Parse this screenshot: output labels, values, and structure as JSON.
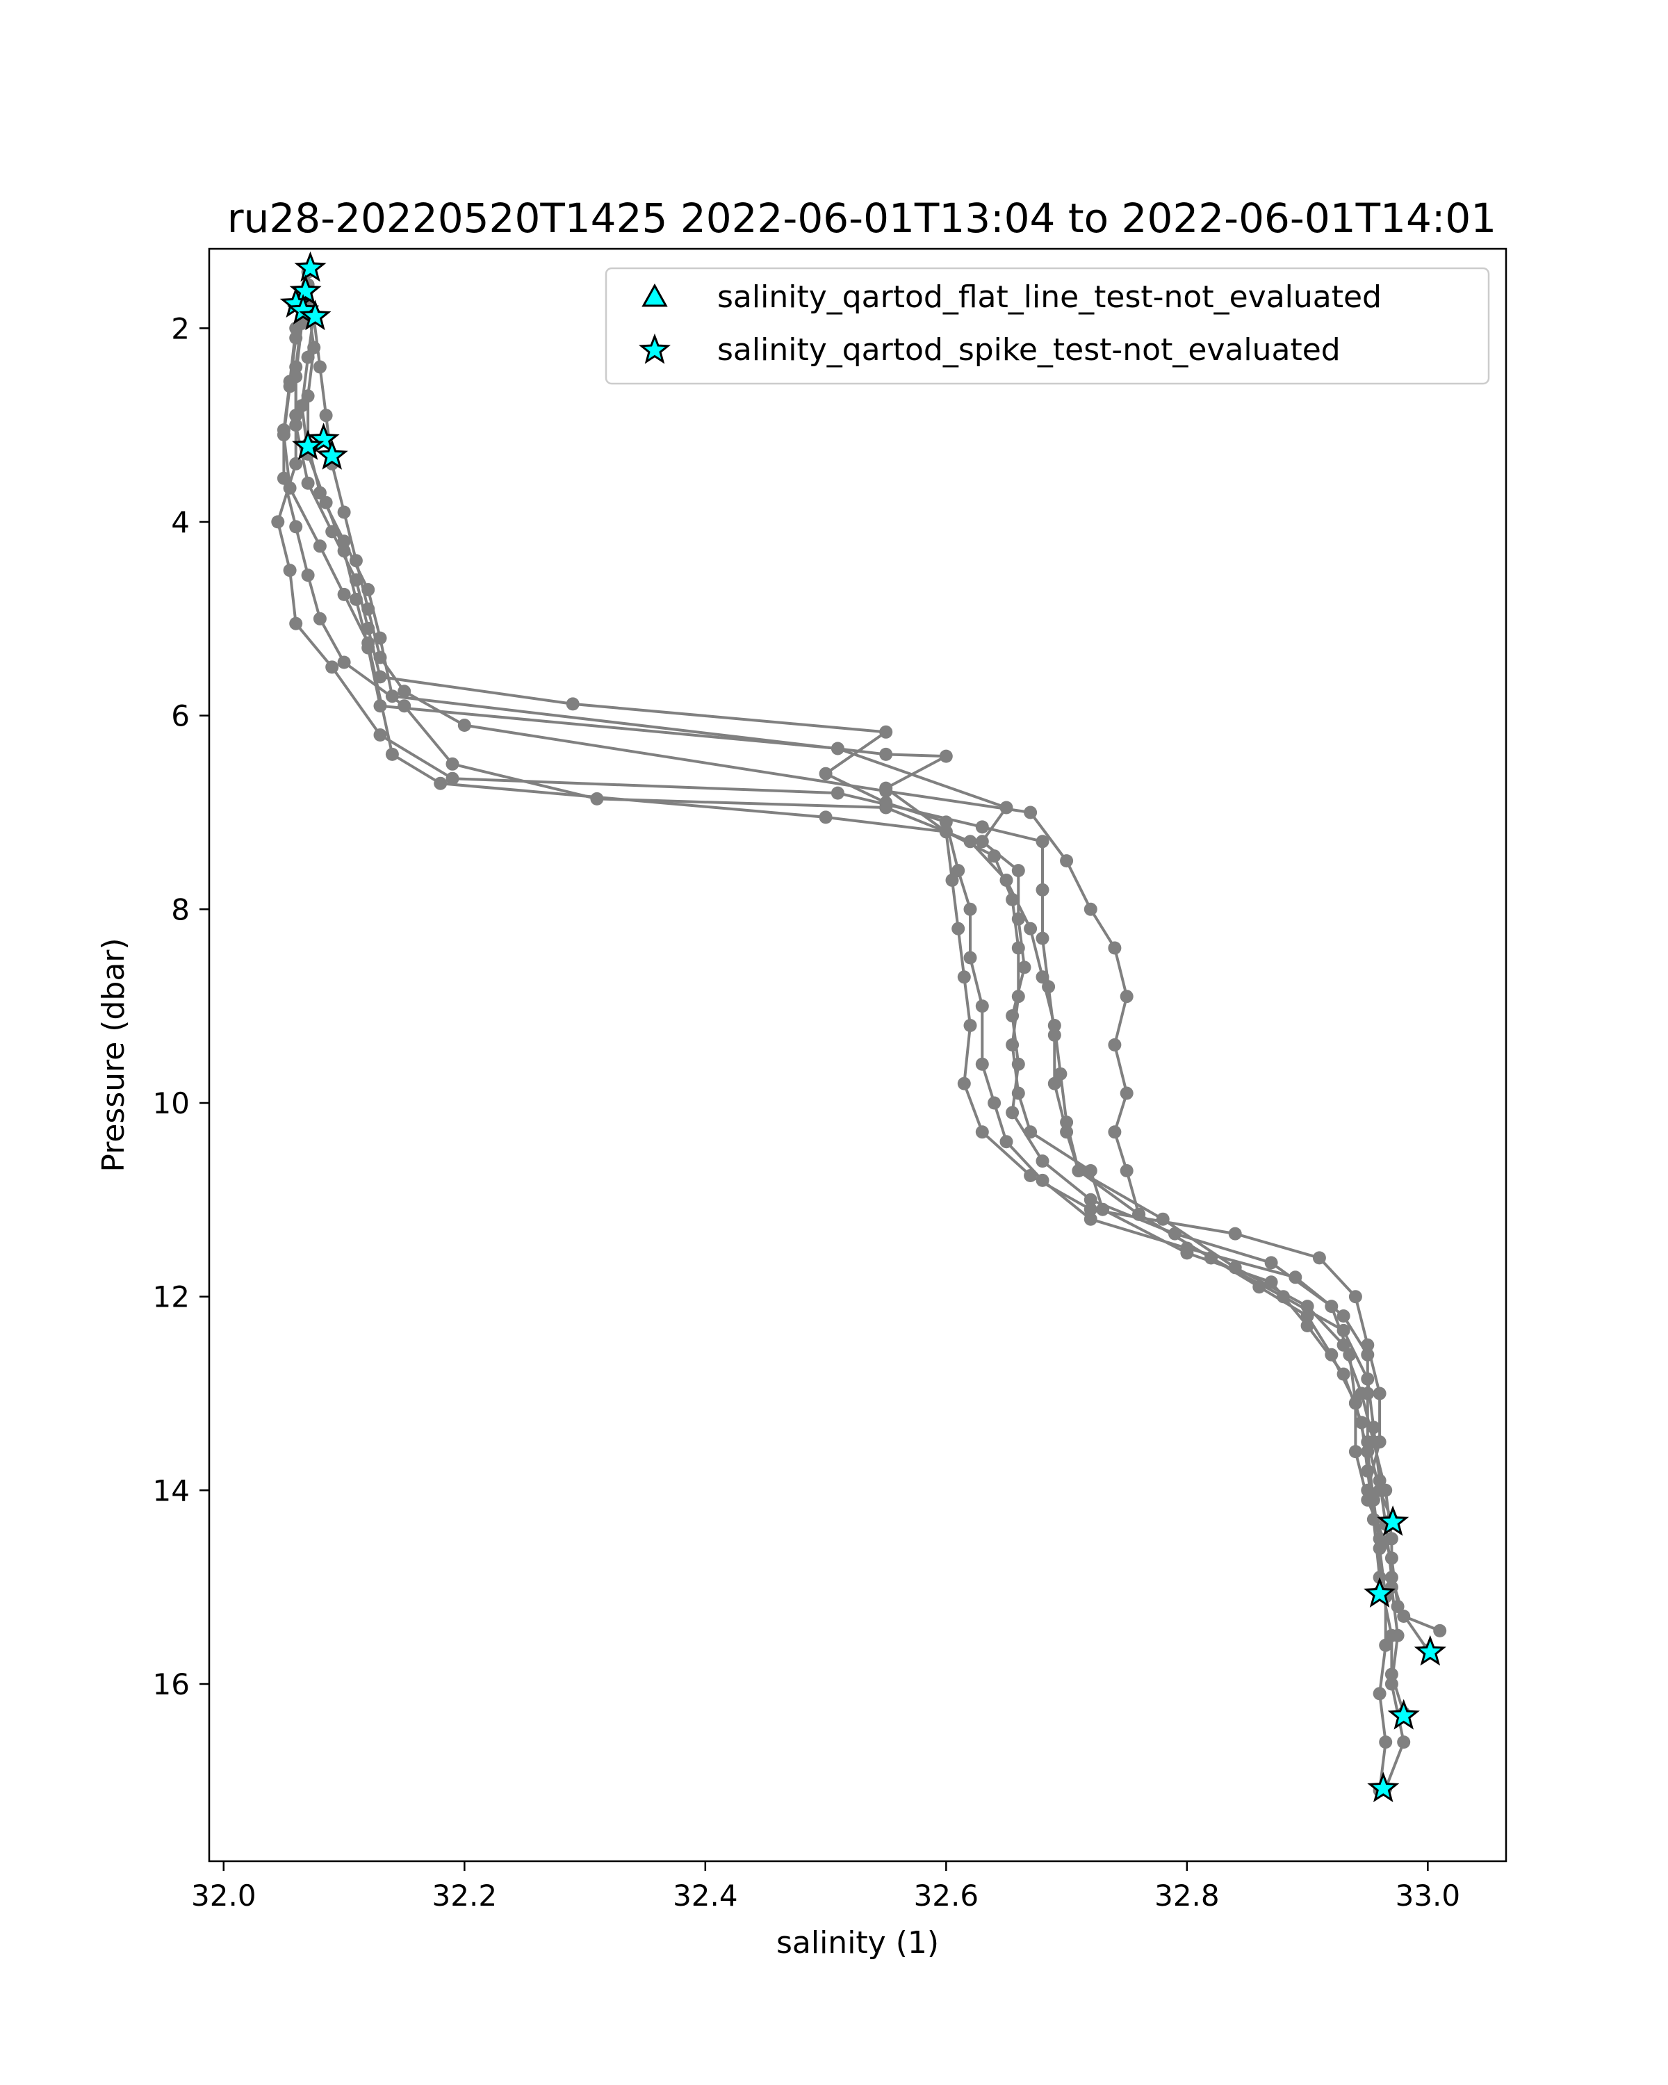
{
  "chart_data": {
    "type": "line",
    "title": "ru28-20220520T1425 2022-06-01T13:04 to 2022-06-01T14:01",
    "xlabel": "salinity (1)",
    "ylabel": "Pressure (dbar)",
    "xlim": [
      31.988,
      33.065
    ],
    "ylim": [
      17.83,
      1.18
    ],
    "y_inverted": true,
    "grid": false,
    "xticks": [
      32.0,
      32.2,
      32.4,
      32.6,
      32.8,
      33.0
    ],
    "xtick_labels": [
      "32.0",
      "32.2",
      "32.4",
      "32.6",
      "32.8",
      "33.0"
    ],
    "yticks": [
      2,
      4,
      6,
      8,
      10,
      12,
      14,
      16
    ],
    "ytick_labels": [
      "2",
      "4",
      "6",
      "8",
      "10",
      "12",
      "14",
      "16"
    ],
    "colors": {
      "profile": "#808080",
      "marker_fill": "#00ffff",
      "marker_edge": "#000000"
    },
    "legend": {
      "placement": "upper right",
      "entries": [
        {
          "label": "salinity_qartod_flat_line_test-not_evaluated",
          "marker": "triangle"
        },
        {
          "label": "salinity_qartod_spike_test-not_evaluated",
          "marker": "star"
        }
      ]
    },
    "series": [
      {
        "points": [
          [
            32.07,
            1.55
          ],
          [
            32.065,
            1.95
          ],
          [
            32.06,
            2.5
          ],
          [
            32.06,
            3.0
          ],
          [
            32.07,
            3.6
          ],
          [
            32.09,
            4.1
          ],
          [
            32.11,
            4.6
          ],
          [
            32.12,
            5.1
          ],
          [
            32.13,
            5.6
          ],
          [
            32.29,
            5.88
          ],
          [
            32.55,
            6.17
          ],
          [
            32.5,
            6.6
          ],
          [
            32.55,
            6.9
          ],
          [
            32.6,
            7.1
          ],
          [
            32.61,
            7.6
          ],
          [
            32.62,
            8.0
          ],
          [
            32.62,
            8.5
          ],
          [
            32.63,
            9.0
          ],
          [
            32.63,
            9.6
          ],
          [
            32.64,
            10.0
          ],
          [
            32.65,
            10.4
          ],
          [
            32.68,
            10.8
          ],
          [
            32.72,
            11.2
          ],
          [
            32.8,
            11.5
          ],
          [
            32.89,
            11.8
          ],
          [
            32.93,
            12.2
          ],
          [
            32.95,
            12.6
          ],
          [
            32.95,
            13.0
          ],
          [
            32.95,
            13.5
          ],
          [
            32.96,
            14.0
          ],
          [
            32.97,
            14.3
          ]
        ]
      },
      {
        "points": [
          [
            32.07,
            1.75
          ],
          [
            32.075,
            2.2
          ],
          [
            32.07,
            2.7
          ],
          [
            32.07,
            3.2
          ],
          [
            32.08,
            3.7
          ],
          [
            32.1,
            4.2
          ],
          [
            32.12,
            4.7
          ],
          [
            32.13,
            5.2
          ],
          [
            32.14,
            5.8
          ],
          [
            32.55,
            6.4
          ],
          [
            32.6,
            6.42
          ],
          [
            32.55,
            6.75
          ],
          [
            32.6,
            7.2
          ],
          [
            32.605,
            7.7
          ],
          [
            32.61,
            8.2
          ],
          [
            32.615,
            8.7
          ],
          [
            32.62,
            9.2
          ],
          [
            32.615,
            9.8
          ],
          [
            32.63,
            10.3
          ],
          [
            32.67,
            10.75
          ],
          [
            32.72,
            11.1
          ],
          [
            32.84,
            11.35
          ],
          [
            32.91,
            11.6
          ],
          [
            32.94,
            12.0
          ],
          [
            32.95,
            12.5
          ],
          [
            32.96,
            13.0
          ],
          [
            32.96,
            13.5
          ],
          [
            32.95,
            14.0
          ],
          [
            32.96,
            14.5
          ],
          [
            32.96,
            15.05
          ]
        ]
      },
      {
        "points": [
          [
            32.075,
            1.85
          ],
          [
            32.07,
            2.3
          ],
          [
            32.065,
            2.8
          ],
          [
            32.07,
            3.3
          ],
          [
            32.085,
            3.8
          ],
          [
            32.1,
            4.3
          ],
          [
            32.11,
            4.8
          ],
          [
            32.12,
            5.3
          ],
          [
            32.13,
            5.9
          ],
          [
            32.51,
            6.34
          ],
          [
            32.65,
            6.95
          ],
          [
            32.63,
            7.3
          ],
          [
            32.66,
            7.6
          ],
          [
            32.66,
            8.1
          ],
          [
            32.665,
            8.6
          ],
          [
            32.655,
            9.1
          ],
          [
            32.66,
            9.6
          ],
          [
            32.655,
            10.1
          ],
          [
            32.68,
            10.6
          ],
          [
            32.72,
            11.0
          ],
          [
            32.79,
            11.35
          ],
          [
            32.87,
            11.65
          ],
          [
            32.92,
            12.1
          ],
          [
            32.935,
            12.6
          ],
          [
            32.94,
            13.1
          ],
          [
            32.94,
            13.6
          ],
          [
            32.95,
            14.1
          ],
          [
            32.97,
            14.7
          ],
          [
            32.975,
            15.2
          ],
          [
            33.0,
            15.65
          ]
        ]
      },
      {
        "points": [
          [
            32.065,
            1.7
          ],
          [
            32.06,
            2.1
          ],
          [
            32.055,
            2.6
          ],
          [
            32.05,
            3.1
          ],
          [
            32.055,
            3.65
          ],
          [
            32.08,
            4.25
          ],
          [
            32.1,
            4.75
          ],
          [
            32.12,
            5.25
          ],
          [
            32.14,
            6.4
          ],
          [
            32.18,
            6.7
          ],
          [
            32.5,
            7.05
          ],
          [
            32.6,
            7.2
          ],
          [
            32.64,
            7.45
          ],
          [
            32.655,
            7.9
          ],
          [
            32.66,
            8.4
          ],
          [
            32.66,
            8.9
          ],
          [
            32.655,
            9.4
          ],
          [
            32.66,
            9.9
          ],
          [
            32.67,
            10.3
          ],
          [
            32.72,
            10.7
          ],
          [
            32.73,
            11.1
          ],
          [
            32.8,
            11.55
          ],
          [
            32.87,
            11.85
          ],
          [
            32.9,
            12.3
          ],
          [
            32.93,
            12.8
          ],
          [
            32.945,
            13.3
          ],
          [
            32.95,
            13.8
          ],
          [
            32.955,
            14.3
          ],
          [
            32.96,
            14.9
          ],
          [
            32.97,
            15.5
          ],
          [
            32.97,
            15.9
          ],
          [
            32.98,
            16.3
          ]
        ]
      },
      {
        "points": [
          [
            32.07,
            1.6
          ],
          [
            32.06,
            2.0
          ],
          [
            32.055,
            2.55
          ],
          [
            32.05,
            3.05
          ],
          [
            32.05,
            3.55
          ],
          [
            32.06,
            4.05
          ],
          [
            32.07,
            4.55
          ],
          [
            32.08,
            5.0
          ],
          [
            32.1,
            5.45
          ],
          [
            32.15,
            5.9
          ],
          [
            32.19,
            6.5
          ],
          [
            32.31,
            6.86
          ],
          [
            32.55,
            6.95
          ],
          [
            32.62,
            7.3
          ],
          [
            32.65,
            7.7
          ],
          [
            32.67,
            8.2
          ],
          [
            32.68,
            8.7
          ],
          [
            32.69,
            9.2
          ],
          [
            32.695,
            9.7
          ],
          [
            32.7,
            10.2
          ],
          [
            32.71,
            10.7
          ],
          [
            32.78,
            11.2
          ],
          [
            32.84,
            11.7
          ],
          [
            32.9,
            12.1
          ],
          [
            32.93,
            12.5
          ],
          [
            32.945,
            13.0
          ],
          [
            32.955,
            13.5
          ],
          [
            32.965,
            14.0
          ],
          [
            32.97,
            14.5
          ],
          [
            32.97,
            15.0
          ],
          [
            32.975,
            15.5
          ],
          [
            32.97,
            16.0
          ],
          [
            32.98,
            16.6
          ],
          [
            32.965,
            17.08
          ]
        ]
      },
      {
        "points": [
          [
            32.07,
            1.42
          ],
          [
            32.065,
            1.88
          ],
          [
            32.06,
            2.4
          ],
          [
            32.06,
            2.9
          ],
          [
            32.06,
            3.4
          ],
          [
            32.045,
            4.0
          ],
          [
            32.055,
            4.5
          ],
          [
            32.06,
            5.05
          ],
          [
            32.09,
            5.5
          ],
          [
            32.13,
            6.2
          ],
          [
            32.19,
            6.65
          ],
          [
            32.51,
            6.8
          ],
          [
            32.63,
            7.15
          ],
          [
            32.68,
            7.3
          ],
          [
            32.68,
            7.8
          ],
          [
            32.68,
            8.3
          ],
          [
            32.685,
            8.8
          ],
          [
            32.69,
            9.3
          ],
          [
            32.69,
            9.8
          ],
          [
            32.7,
            10.3
          ],
          [
            32.71,
            10.7
          ],
          [
            32.76,
            11.15
          ],
          [
            32.82,
            11.6
          ],
          [
            32.88,
            12.0
          ],
          [
            32.93,
            12.35
          ],
          [
            32.95,
            12.85
          ],
          [
            32.955,
            13.35
          ],
          [
            32.96,
            13.9
          ],
          [
            32.965,
            14.35
          ],
          [
            32.97,
            14.9
          ],
          [
            32.98,
            15.3
          ],
          [
            33.01,
            15.45
          ]
        ]
      },
      {
        "points": [
          [
            32.075,
            1.9
          ],
          [
            32.08,
            2.4
          ],
          [
            32.085,
            2.9
          ],
          [
            32.09,
            3.4
          ],
          [
            32.1,
            3.9
          ],
          [
            32.11,
            4.4
          ],
          [
            32.12,
            4.9
          ],
          [
            32.13,
            5.4
          ],
          [
            32.15,
            5.75
          ],
          [
            32.2,
            6.1
          ],
          [
            32.55,
            6.78
          ],
          [
            32.67,
            7.0
          ],
          [
            32.7,
            7.5
          ],
          [
            32.72,
            8.0
          ],
          [
            32.74,
            8.4
          ],
          [
            32.75,
            8.9
          ],
          [
            32.74,
            9.4
          ],
          [
            32.75,
            9.9
          ],
          [
            32.74,
            10.3
          ],
          [
            32.75,
            10.7
          ],
          [
            32.76,
            11.15
          ],
          [
            32.82,
            11.6
          ],
          [
            32.86,
            11.9
          ],
          [
            32.9,
            12.2
          ],
          [
            32.92,
            12.6
          ],
          [
            32.94,
            13.1
          ],
          [
            32.95,
            13.6
          ],
          [
            32.955,
            14.1
          ],
          [
            32.96,
            14.6
          ],
          [
            32.965,
            15.1
          ],
          [
            32.965,
            15.6
          ],
          [
            32.96,
            16.1
          ],
          [
            32.965,
            16.6
          ],
          [
            32.96,
            17.1
          ]
        ]
      }
    ],
    "flat_line_points": [],
    "spike_points": [
      [
        32.072,
        1.38
      ],
      [
        32.068,
        1.62
      ],
      [
        32.06,
        1.75
      ],
      [
        32.066,
        1.82
      ],
      [
        32.076,
        1.88
      ],
      [
        32.083,
        3.15
      ],
      [
        32.07,
        3.22
      ],
      [
        32.09,
        3.32
      ],
      [
        32.971,
        14.33
      ],
      [
        32.96,
        15.07
      ],
      [
        33.002,
        15.67
      ],
      [
        32.98,
        16.33
      ],
      [
        32.963,
        17.08
      ]
    ]
  }
}
